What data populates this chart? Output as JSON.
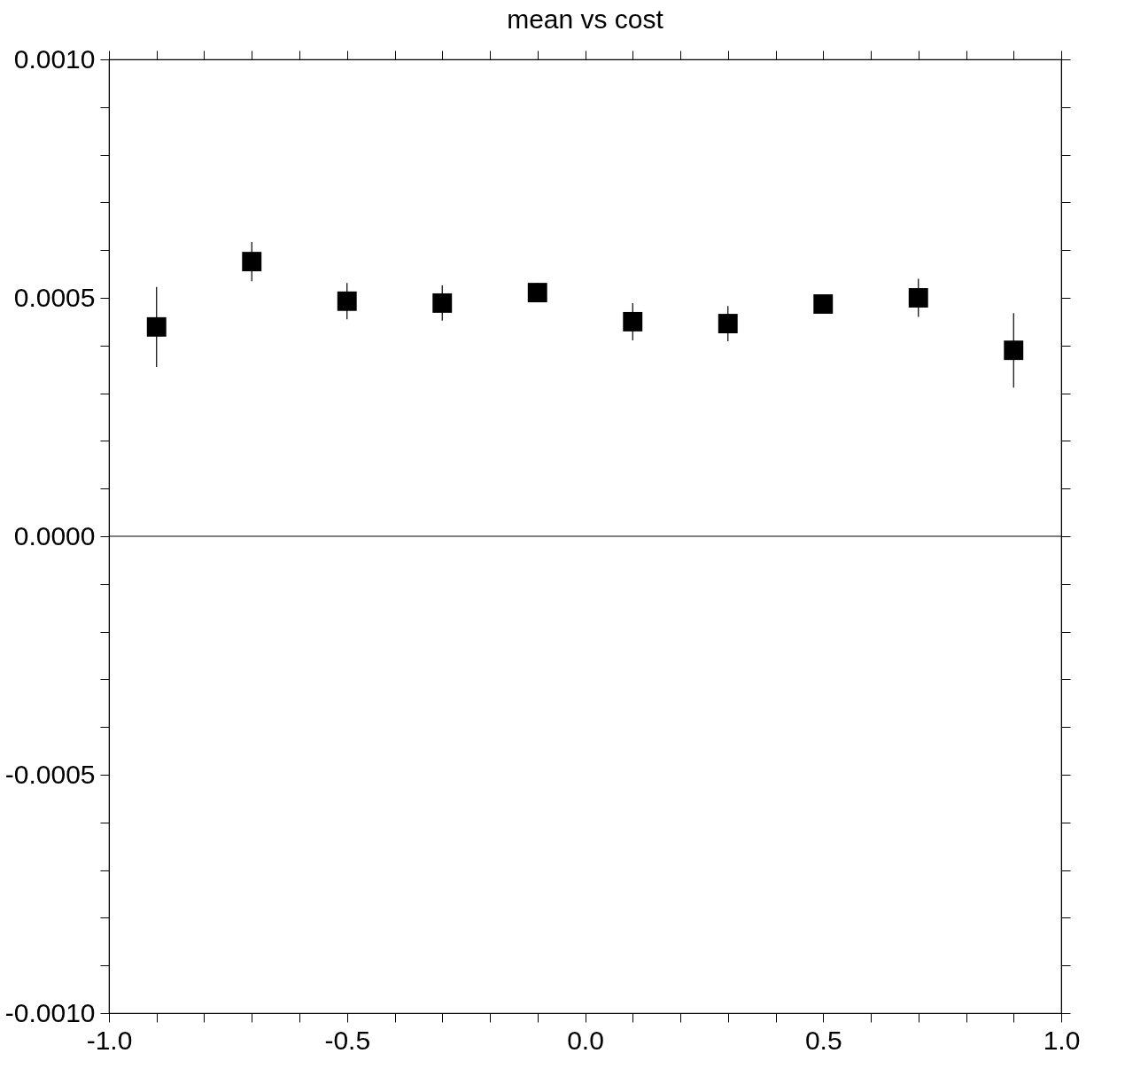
{
  "chart_data": {
    "type": "scatter",
    "title": "mean vs cost",
    "x": [
      -0.9,
      -0.7,
      -0.5,
      -0.3,
      -0.1,
      0.1,
      0.3,
      0.5,
      0.7,
      0.9
    ],
    "series": [
      {
        "color": "#000000",
        "values": [
          0.000439,
          0.000576,
          0.000493,
          0.000489,
          0.000511,
          0.00045,
          0.000446,
          0.000487,
          0.0005,
          0.00039
        ],
        "errors": [
          8.4e-05,
          4.1e-05,
          3.8e-05,
          3.7e-05,
          2e-05,
          3.9e-05,
          3.7e-05,
          2e-05,
          4e-05,
          7.8e-05
        ]
      }
    ],
    "marker": "square",
    "xlim": [
      -1.0,
      1.0
    ],
    "xticks": [
      {
        "value": -1.0,
        "label": "-1.0"
      },
      {
        "value": -0.9,
        "label": null
      },
      {
        "value": -0.8,
        "label": null
      },
      {
        "value": -0.7,
        "label": null
      },
      {
        "value": -0.6,
        "label": null
      },
      {
        "value": -0.5,
        "label": "-0.5"
      },
      {
        "value": -0.4,
        "label": null
      },
      {
        "value": -0.3,
        "label": null
      },
      {
        "value": -0.2,
        "label": null
      },
      {
        "value": -0.1,
        "label": null
      },
      {
        "value": 0,
        "label": "0.0"
      },
      {
        "value": 0.1,
        "label": null
      },
      {
        "value": 0.2,
        "label": null
      },
      {
        "value": 0.3,
        "label": null
      },
      {
        "value": 0.4,
        "label": null
      },
      {
        "value": 0.5,
        "label": "0.5"
      },
      {
        "value": 0.6,
        "label": null
      },
      {
        "value": 0.7,
        "label": null
      },
      {
        "value": 0.8,
        "label": null
      },
      {
        "value": 0.9,
        "label": null
      },
      {
        "value": 1.0,
        "label": "1.0"
      }
    ],
    "ylim": [
      -0.001,
      0.001
    ],
    "yticks": [
      {
        "value": -0.001,
        "label": "-0.0010"
      },
      {
        "value": -0.0009,
        "label": null
      },
      {
        "value": -0.0008,
        "label": null
      },
      {
        "value": -0.0007,
        "label": null
      },
      {
        "value": -0.0006,
        "label": null
      },
      {
        "value": -0.0005,
        "label": "-0.0005"
      },
      {
        "value": -0.0004,
        "label": null
      },
      {
        "value": -0.0003,
        "label": null
      },
      {
        "value": -0.0002,
        "label": null
      },
      {
        "value": -0.0001,
        "label": null
      },
      {
        "value": 0,
        "label": "0.0000"
      },
      {
        "value": 0.0001,
        "label": null
      },
      {
        "value": 0.0002,
        "label": null
      },
      {
        "value": 0.0003,
        "label": null
      },
      {
        "value": 0.0004,
        "label": null
      },
      {
        "value": 0.0005,
        "label": "0.0005"
      },
      {
        "value": 0.0006,
        "label": null
      },
      {
        "value": 0.0007,
        "label": null
      },
      {
        "value": 0.0008,
        "label": null
      },
      {
        "value": 0.0009,
        "label": null
      },
      {
        "value": 0.001,
        "label": "0.0010"
      }
    ],
    "ref_lines": [
      {
        "axis": "y",
        "value": 0,
        "color": "#000000"
      }
    ],
    "grid": false
  }
}
